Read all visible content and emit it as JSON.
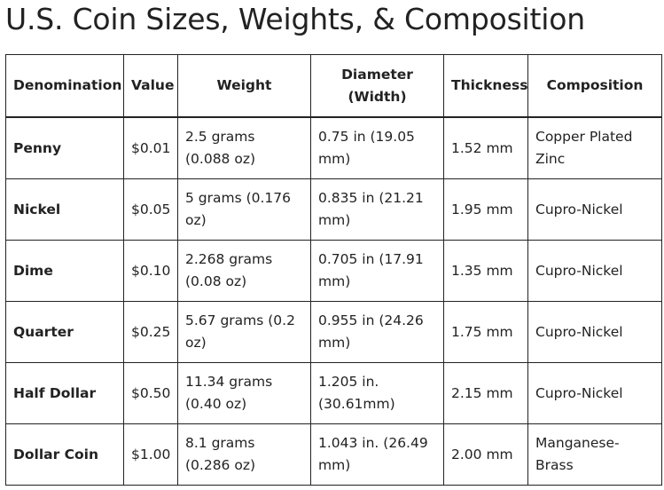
{
  "page": {
    "title": "U.S. Coin Sizes, Weights, & Composition"
  },
  "table": {
    "headers": {
      "denomination": "Denomination",
      "value": "Value",
      "weight": "Weight",
      "diameter": "Diameter (Width)",
      "thickness": "Thickness",
      "composition": "Composition"
    },
    "rows": [
      {
        "denomination": "Penny",
        "value": "$0.01",
        "weight": "2.5 grams (0.088 oz)",
        "diameter": "0.75 in (19.05 mm)",
        "thickness": "1.52 mm",
        "composition": "Copper Plated Zinc"
      },
      {
        "denomination": "Nickel",
        "value": "$0.05",
        "weight": "5 grams (0.176 oz)",
        "diameter": "0.835 in (21.21 mm)",
        "thickness": "1.95 mm",
        "composition": "Cupro-Nickel"
      },
      {
        "denomination": "Dime",
        "value": "$0.10",
        "weight": "2.268 grams (0.08 oz)",
        "diameter": "0.705 in (17.91 mm)",
        "thickness": "1.35 mm",
        "composition": "Cupro-Nickel"
      },
      {
        "denomination": "Quarter",
        "value": "$0.25",
        "weight": "5.67 grams (0.2 oz)",
        "diameter": "0.955 in (24.26 mm)",
        "thickness": "1.75 mm",
        "composition": "Cupro-Nickel"
      },
      {
        "denomination": "Half Dollar",
        "value": "$0.50",
        "weight": "11.34 grams (0.40 oz)",
        "diameter": "1.205 in. (30.61mm)",
        "thickness": "2.15 mm",
        "composition": "Cupro-Nickel"
      },
      {
        "denomination": "Dollar Coin",
        "value": "$1.00",
        "weight": "8.1 grams (0.286 oz)",
        "diameter": "1.043 in. (26.49 mm)",
        "thickness": "2.00 mm",
        "composition": "Manganese-Brass"
      }
    ]
  }
}
